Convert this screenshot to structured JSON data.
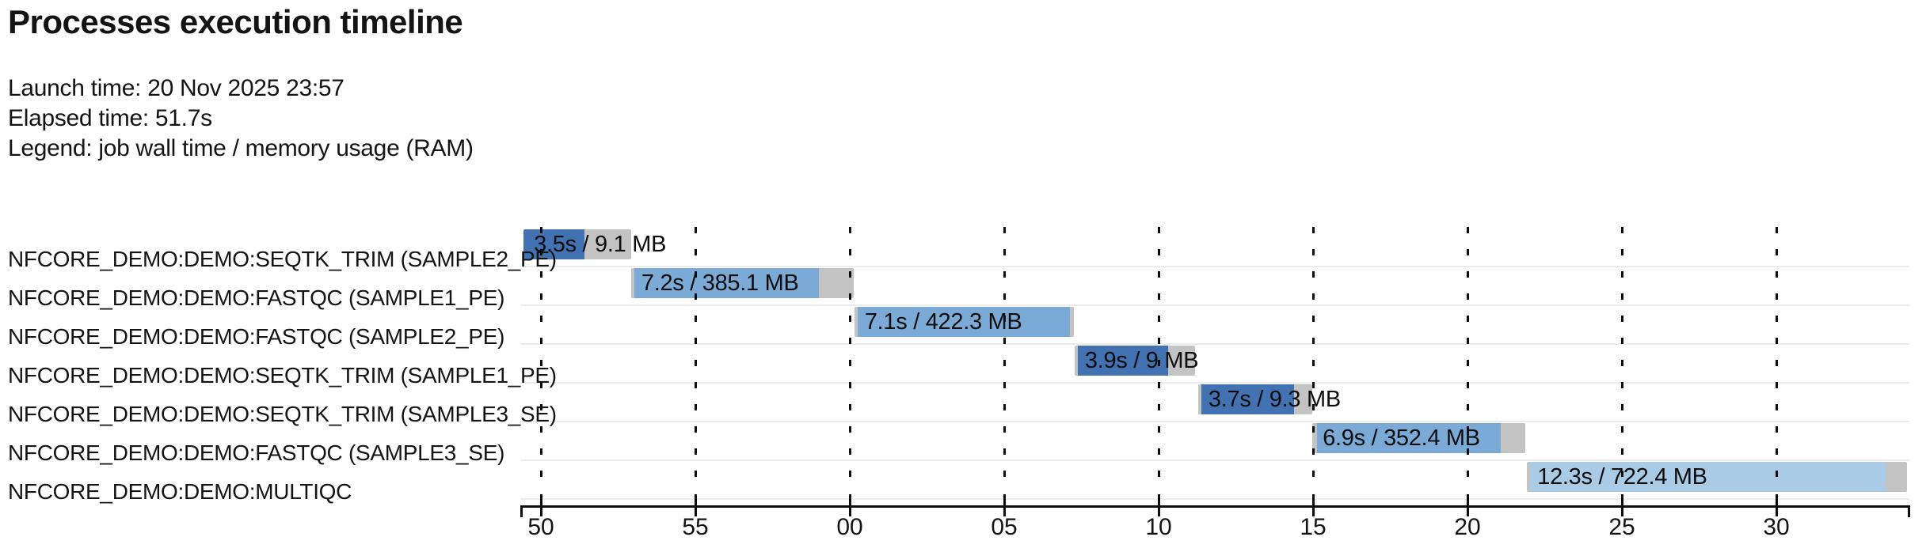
{
  "header": {
    "title": "Processes execution timeline",
    "launch_line": "Launch time: 20 Nov 2025 23:57",
    "elapsed_line": "Elapsed time: 51.7s",
    "legend_line": "Legend: job wall time / memory usage (RAM)"
  },
  "colors": {
    "bar_dark_blue": "#4372b2",
    "bar_medium_blue": "#7aaad5",
    "bar_light_blue": "#a9cbe5",
    "bar_gray": "#c3c3c3",
    "separator_gray": "#ececec",
    "axis_black": "#0c0c0c",
    "text": "#141414"
  },
  "chart_data": {
    "type": "gantt-timeline",
    "title": "Processes execution timeline",
    "time_axis": {
      "description": "seconds within minute, clock time starting 23:57",
      "tick_interval_s": 5,
      "domain_s": [
        49.37,
        94.33
      ],
      "ticks": [
        {
          "t": 50,
          "label": "50"
        },
        {
          "t": 55,
          "label": "55"
        },
        {
          "t": 60,
          "label": "00"
        },
        {
          "t": 65,
          "label": "05"
        },
        {
          "t": 70,
          "label": "10"
        },
        {
          "t": 75,
          "label": "15"
        },
        {
          "t": 80,
          "label": "20"
        },
        {
          "t": 85,
          "label": "25"
        },
        {
          "t": 90,
          "label": "30"
        }
      ]
    },
    "processes": [
      {
        "name": "NFCORE_DEMO:DEMO:SEQTK_TRIM (SAMPLE2_PE)",
        "label": "3.5s / 9.1 MB",
        "wall_time_s": 3.5,
        "memory": "9.1 MB",
        "color": "dark",
        "submit_s": 49.44,
        "start_s": 49.44,
        "run_end_s": 51.42,
        "complete_s": 52.92
      },
      {
        "name": "NFCORE_DEMO:DEMO:FASTQC (SAMPLE1_PE)",
        "label": "7.2s / 385.1 MB",
        "wall_time_s": 7.2,
        "memory": "385.1 MB",
        "color": "medium",
        "submit_s": 52.92,
        "start_s": 53.03,
        "run_end_s": 59.0,
        "complete_s": 60.12
      },
      {
        "name": "NFCORE_DEMO:DEMO:FASTQC (SAMPLE2_PE)",
        "label": "7.1s / 422.3 MB",
        "wall_time_s": 7.1,
        "memory": "422.3 MB",
        "color": "medium",
        "submit_s": 60.15,
        "start_s": 60.26,
        "run_end_s": 67.13,
        "complete_s": 67.25
      },
      {
        "name": "NFCORE_DEMO:DEMO:SEQTK_TRIM (SAMPLE1_PE)",
        "label": "3.9s / 9 MB",
        "wall_time_s": 3.9,
        "memory": "9 MB",
        "color": "dark",
        "submit_s": 67.28,
        "start_s": 67.39,
        "run_end_s": 70.31,
        "complete_s": 71.18
      },
      {
        "name": "NFCORE_DEMO:DEMO:SEQTK_TRIM (SAMPLE3_SE)",
        "label": "3.7s / 9.3 MB",
        "wall_time_s": 3.7,
        "memory": "9.3 MB",
        "color": "dark",
        "submit_s": 71.28,
        "start_s": 71.39,
        "run_end_s": 74.39,
        "complete_s": 74.98
      },
      {
        "name": "NFCORE_DEMO:DEMO:FASTQC (SAMPLE3_SE)",
        "label": "6.9s / 352.4 MB",
        "wall_time_s": 6.9,
        "memory": "352.4 MB",
        "color": "medium",
        "submit_s": 74.98,
        "start_s": 75.14,
        "run_end_s": 81.08,
        "complete_s": 81.88
      },
      {
        "name": "NFCORE_DEMO:DEMO:MULTIQC",
        "label": "12.3s / 722.4 MB",
        "wall_time_s": 12.3,
        "memory": "722.4 MB",
        "color": "light",
        "submit_s": 81.93,
        "start_s": 82.03,
        "run_end_s": 93.55,
        "complete_s": 94.23
      }
    ]
  }
}
